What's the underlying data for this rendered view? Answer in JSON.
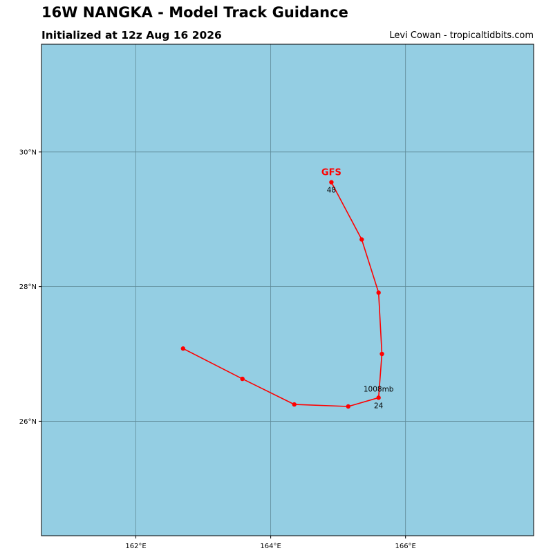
{
  "header": {
    "title": "16W NANGKA - Model Track Guidance",
    "subtitle": "Initialized at 12z Aug 16 2026",
    "credit": "Levi Cowan - tropicaltidbits.com"
  },
  "map": {
    "ocean_color": "#94cee3",
    "grid_color": "#5f8a97",
    "lon_range": [
      160.6,
      167.9
    ],
    "lat_range": [
      24.3,
      31.6
    ],
    "lon_ticks": [
      {
        "value": 162,
        "label": "162°E"
      },
      {
        "value": 164,
        "label": "164°E"
      },
      {
        "value": 166,
        "label": "166°E"
      }
    ],
    "lat_ticks": [
      {
        "value": 30,
        "label": "30°N"
      },
      {
        "value": 28,
        "label": "28°N"
      },
      {
        "value": 26,
        "label": "26°N"
      }
    ]
  },
  "tracks": [
    {
      "model": "GFS",
      "color": "#ff0000",
      "points": [
        {
          "lon": 162.7,
          "lat": 27.08
        },
        {
          "lon": 163.58,
          "lat": 26.63
        },
        {
          "lon": 164.35,
          "lat": 26.25
        },
        {
          "lon": 165.15,
          "lat": 26.22
        },
        {
          "lon": 165.6,
          "lat": 26.35,
          "hour_label": "24",
          "pressure_label": "1008mb"
        },
        {
          "lon": 165.65,
          "lat": 27.0
        },
        {
          "lon": 165.6,
          "lat": 27.91
        },
        {
          "lon": 165.35,
          "lat": 28.7
        },
        {
          "lon": 164.9,
          "lat": 29.55,
          "hour_label": "48"
        }
      ]
    }
  ]
}
